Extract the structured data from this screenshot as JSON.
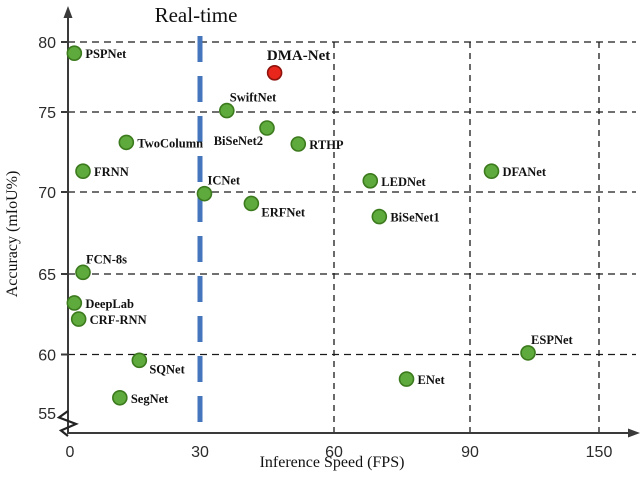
{
  "chart_data": {
    "type": "scatter",
    "title": "",
    "xlabel": "Inference Speed (FPS)",
    "ylabel": "Accuracy (mIoU%)",
    "x_ticks": [
      0,
      30,
      60,
      90,
      150
    ],
    "y_ticks": [
      80,
      75,
      70,
      65,
      60,
      55
    ],
    "grid_x": [
      60,
      90,
      150
    ],
    "grid_y": [
      80,
      75,
      70,
      65,
      60
    ],
    "grid": "dashed",
    "x_axis_note": "non-linear axis: tick marks 0/30/60/90/150 are evenly spaced",
    "y_axis_break_below": 55,
    "realtime_threshold_fps": 30,
    "annotation": "Real-time",
    "legend": "none",
    "points": [
      {
        "name": "PSPNet",
        "fps": 1,
        "miou": 79.2,
        "color": "green",
        "label_pos": "right"
      },
      {
        "name": "DMA-Net",
        "fps": 46.7,
        "miou": 77.8,
        "color": "red",
        "label_pos": "above",
        "emphasis": true
      },
      {
        "name": "SwiftNet",
        "fps": 36,
        "miou": 75.1,
        "color": "green",
        "label_pos": "above-right"
      },
      {
        "name": "BiSeNet2",
        "fps": 45,
        "miou": 74.0,
        "color": "green",
        "label_pos": "below-left"
      },
      {
        "name": "RTHP",
        "fps": 52,
        "miou": 73.0,
        "color": "green",
        "label_pos": "right"
      },
      {
        "name": "TwoColumn",
        "fps": 13,
        "miou": 73.1,
        "color": "green",
        "label_pos": "right"
      },
      {
        "name": "FRNN",
        "fps": 3,
        "miou": 71.3,
        "color": "green",
        "label_pos": "right"
      },
      {
        "name": "DFANet",
        "fps": 100,
        "miou": 71.3,
        "color": "green",
        "label_pos": "right"
      },
      {
        "name": "LEDNet",
        "fps": 68,
        "miou": 70.7,
        "color": "green",
        "label_pos": "right"
      },
      {
        "name": "ICNet",
        "fps": 31,
        "miou": 69.9,
        "color": "green",
        "label_pos": "above-right"
      },
      {
        "name": "ERFNet",
        "fps": 41.5,
        "miou": 69.3,
        "color": "green",
        "label_pos": "below-right"
      },
      {
        "name": "BiSeNet1",
        "fps": 70,
        "miou": 68.5,
        "color": "green",
        "label_pos": "right"
      },
      {
        "name": "FCN-8s",
        "fps": 3,
        "miou": 65.1,
        "color": "green",
        "label_pos": "above-right"
      },
      {
        "name": "DeepLab",
        "fps": 1,
        "miou": 63.2,
        "color": "green",
        "label_pos": "right"
      },
      {
        "name": "CRF-RNN",
        "fps": 2,
        "miou": 62.2,
        "color": "green",
        "label_pos": "right"
      },
      {
        "name": "ESPNet",
        "fps": 117,
        "miou": 60.1,
        "color": "green",
        "label_pos": "above-right"
      },
      {
        "name": "SQNet",
        "fps": 16,
        "miou": 59.5,
        "color": "green",
        "label_pos": "below-right"
      },
      {
        "name": "ENet",
        "fps": 76,
        "miou": 57.9,
        "color": "green",
        "label_pos": "right"
      },
      {
        "name": "SegNet",
        "fps": 11.5,
        "miou": 56.3,
        "color": "green",
        "label_pos": "right"
      }
    ]
  },
  "colors": {
    "green_dot_fill": "#5faa3c",
    "green_dot_stroke": "#3c7a1e",
    "red_dot_fill": "#e8261b",
    "red_dot_stroke": "#8f130d",
    "realtime_blue": "#4576bd",
    "gridline": "#1a1a1a",
    "axis": "#3a3a3a",
    "text": "#111111"
  }
}
